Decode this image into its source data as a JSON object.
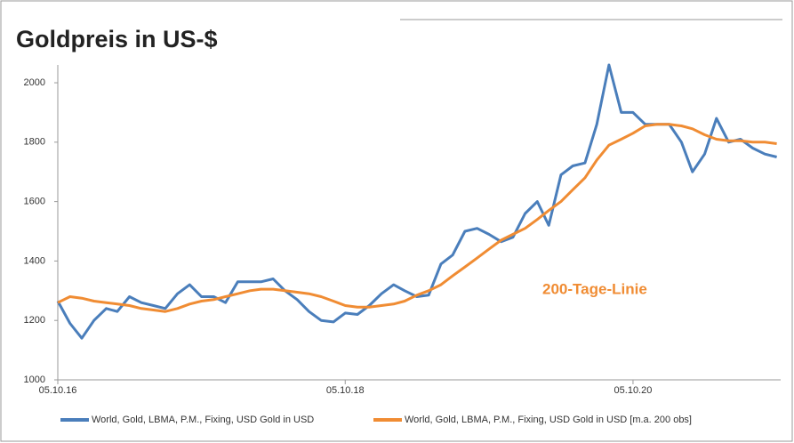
{
  "chart_data": {
    "type": "line",
    "title": "Goldpreis in US-$",
    "annotation": "200-Tage-Linie",
    "x": [
      "2016-10-05",
      "2016-11-05",
      "2016-12-05",
      "2017-01-05",
      "2017-02-05",
      "2017-03-05",
      "2017-04-05",
      "2017-05-05",
      "2017-06-05",
      "2017-07-05",
      "2017-08-05",
      "2017-09-05",
      "2017-10-05",
      "2017-11-05",
      "2017-12-05",
      "2018-01-05",
      "2018-02-05",
      "2018-03-05",
      "2018-04-05",
      "2018-05-05",
      "2018-06-05",
      "2018-07-05",
      "2018-08-05",
      "2018-09-05",
      "2018-10-05",
      "2018-11-05",
      "2018-12-05",
      "2019-01-05",
      "2019-02-05",
      "2019-03-05",
      "2019-04-05",
      "2019-05-05",
      "2019-06-05",
      "2019-07-05",
      "2019-08-05",
      "2019-09-05",
      "2019-10-05",
      "2019-11-05",
      "2019-12-05",
      "2020-01-05",
      "2020-02-05",
      "2020-03-05",
      "2020-04-05",
      "2020-05-05",
      "2020-06-05",
      "2020-07-05",
      "2020-08-05",
      "2020-09-05",
      "2020-10-05",
      "2020-11-05",
      "2020-12-05",
      "2021-01-05",
      "2021-02-05",
      "2021-03-05",
      "2021-04-05",
      "2021-05-05",
      "2021-06-05",
      "2021-07-05",
      "2021-08-05",
      "2021-09-05",
      "2021-10-05"
    ],
    "series": [
      {
        "name": "World, Gold, LBMA, P.M., Fixing, USD Gold in USD",
        "color": "#4a7ebb",
        "values": [
          1265,
          1190,
          1140,
          1200,
          1240,
          1230,
          1280,
          1260,
          1250,
          1240,
          1290,
          1320,
          1280,
          1280,
          1260,
          1330,
          1330,
          1330,
          1340,
          1300,
          1270,
          1230,
          1200,
          1195,
          1225,
          1220,
          1250,
          1290,
          1320,
          1300,
          1280,
          1285,
          1390,
          1420,
          1500,
          1510,
          1490,
          1465,
          1480,
          1560,
          1600,
          1520,
          1690,
          1720,
          1730,
          1860,
          2060,
          1900,
          1900,
          1860,
          1860,
          1860,
          1800,
          1700,
          1760,
          1880,
          1800,
          1810,
          1780,
          1760,
          1750
        ]
      },
      {
        "name": "World, Gold, LBMA, P.M., Fixing, USD Gold in USD [m.a. 200 obs]",
        "color": "#f08c33",
        "values": [
          1260,
          1280,
          1275,
          1265,
          1260,
          1255,
          1250,
          1240,
          1235,
          1230,
          1240,
          1255,
          1265,
          1270,
          1280,
          1290,
          1300,
          1305,
          1305,
          1300,
          1295,
          1290,
          1280,
          1265,
          1250,
          1245,
          1245,
          1250,
          1255,
          1265,
          1285,
          1300,
          1320,
          1350,
          1380,
          1410,
          1440,
          1470,
          1490,
          1510,
          1540,
          1570,
          1600,
          1640,
          1680,
          1740,
          1790,
          1810,
          1830,
          1855,
          1860,
          1860,
          1855,
          1845,
          1825,
          1810,
          1805,
          1805,
          1800,
          1800,
          1795
        ]
      }
    ],
    "xlim": [
      "2016-10-05",
      "2021-10-15"
    ],
    "xticks": [
      {
        "value": "2016-10-05",
        "label": "05.10.16"
      },
      {
        "value": "2018-10-05",
        "label": "05.10.18"
      },
      {
        "value": "2020-10-05",
        "label": "05.10.20"
      }
    ],
    "ylim": [
      1000,
      2060
    ],
    "yticks": [
      1000,
      1200,
      1400,
      1600,
      1800,
      2000
    ]
  }
}
